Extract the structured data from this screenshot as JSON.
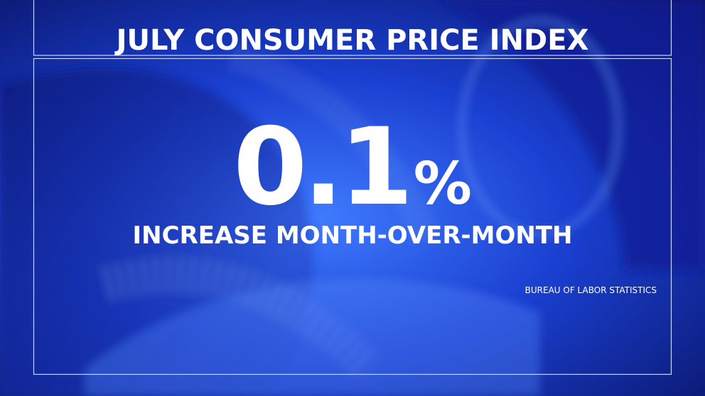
{
  "header": {
    "title": "JULY CONSUMER PRICE INDEX"
  },
  "stat": {
    "value": "0.1",
    "unit": "%",
    "description": "INCREASE MONTH-OVER-MONTH"
  },
  "source": "BUREAU OF LABOR STATISTICS"
}
